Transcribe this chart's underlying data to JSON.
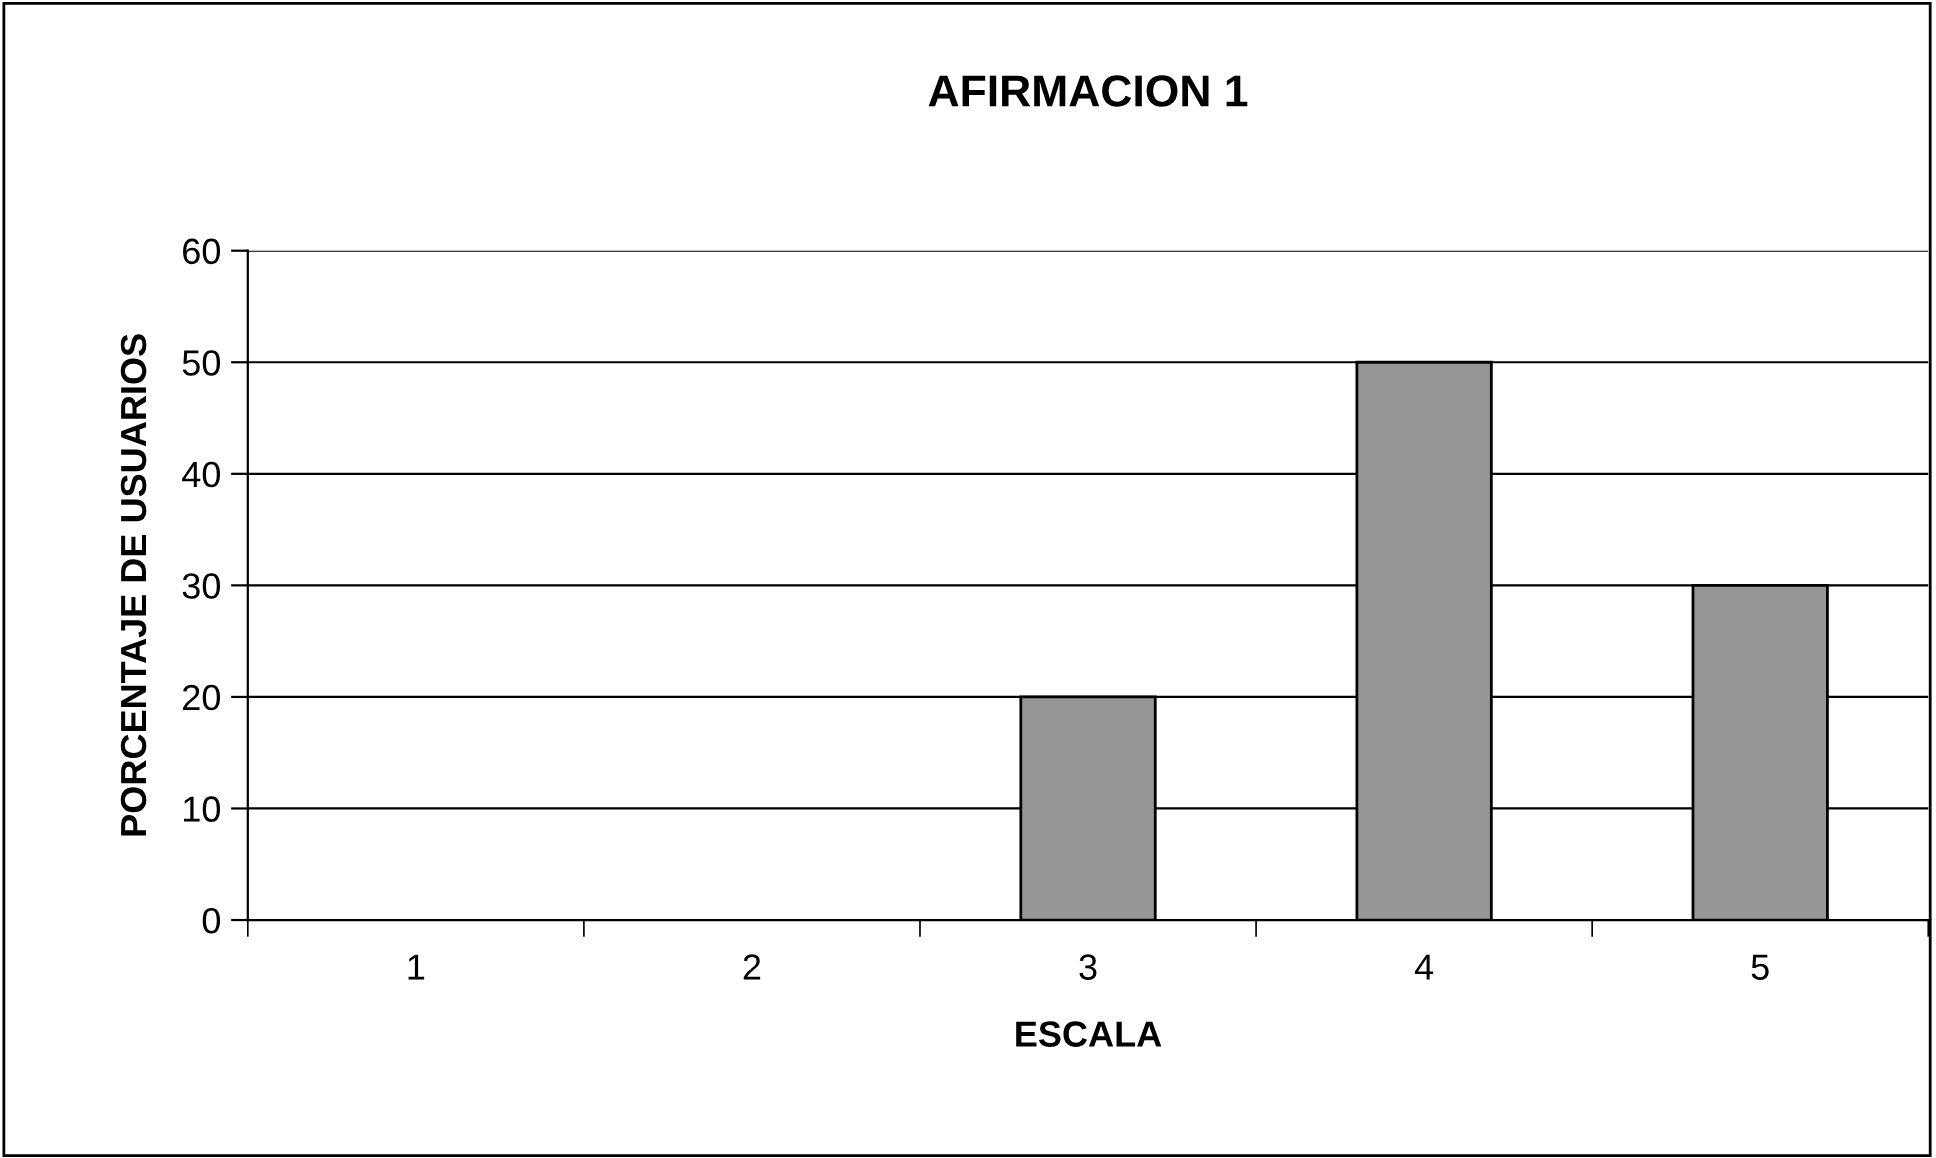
{
  "chart_data": {
    "type": "bar",
    "title": "AFIRMACION 1",
    "xlabel": "ESCALA",
    "ylabel": "PORCENTAJE DE USUARIOS",
    "categories": [
      "1",
      "2",
      "3",
      "4",
      "5"
    ],
    "values": [
      0,
      0,
      20,
      50,
      30
    ],
    "color": "#969696",
    "ylim": [
      0,
      60
    ],
    "yticks": [
      0,
      10,
      20,
      30,
      40,
      50,
      60
    ],
    "grid": "y",
    "legend": false
  }
}
